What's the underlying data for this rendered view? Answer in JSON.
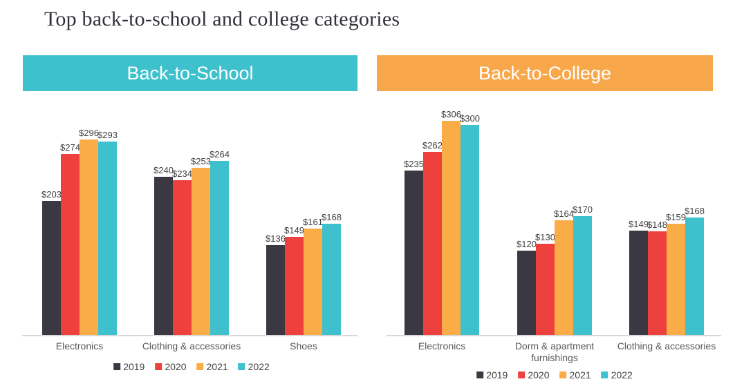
{
  "title": "Top back-to-school and college categories",
  "colors": {
    "title_text": "#33303A",
    "banner_text": "#FFFFFF",
    "axis_line": "#D9D9D9",
    "value_label_text": "#404040",
    "category_text": "#595959",
    "legend_text": "#404040"
  },
  "chart_data": [
    {
      "type": "bar",
      "title": "Back-to-School",
      "header_color": "#3EC1CD",
      "categories": [
        "Electronics",
        "Clothing & accessories",
        "Shoes"
      ],
      "series": [
        {
          "name": "2019",
          "color": "#3B3743",
          "values": [
            203,
            240,
            136
          ]
        },
        {
          "name": "2020",
          "color": "#EE413D",
          "values": [
            274,
            234,
            149
          ]
        },
        {
          "name": "2021",
          "color": "#FAAC47",
          "values": [
            296,
            253,
            161
          ]
        },
        {
          "name": "2022",
          "color": "#3EC1CD",
          "values": [
            293,
            264,
            168
          ]
        }
      ],
      "value_prefix": "$",
      "data_labels": true,
      "legend": [
        "2019",
        "2020",
        "2021",
        "2022"
      ],
      "legend_position": "bottom",
      "grid": false,
      "y_axis_visible": false
    },
    {
      "type": "bar",
      "title": "Back-to-College",
      "header_color": "#F8A84B",
      "categories": [
        "Electronics",
        "Dorm & apartment furnishings",
        "Clothing & accessories"
      ],
      "series": [
        {
          "name": "2019",
          "color": "#3B3743",
          "values": [
            235,
            120,
            149
          ]
        },
        {
          "name": "2020",
          "color": "#EE413D",
          "values": [
            262,
            130,
            148
          ]
        },
        {
          "name": "2021",
          "color": "#FAAC47",
          "values": [
            306,
            164,
            159
          ]
        },
        {
          "name": "2022",
          "color": "#3EC1CD",
          "values": [
            300,
            170,
            168
          ]
        }
      ],
      "value_prefix": "$",
      "data_labels": true,
      "legend": [
        "2019",
        "2020",
        "2021",
        "2022"
      ],
      "legend_position": "bottom",
      "grid": false,
      "y_axis_visible": false
    }
  ]
}
